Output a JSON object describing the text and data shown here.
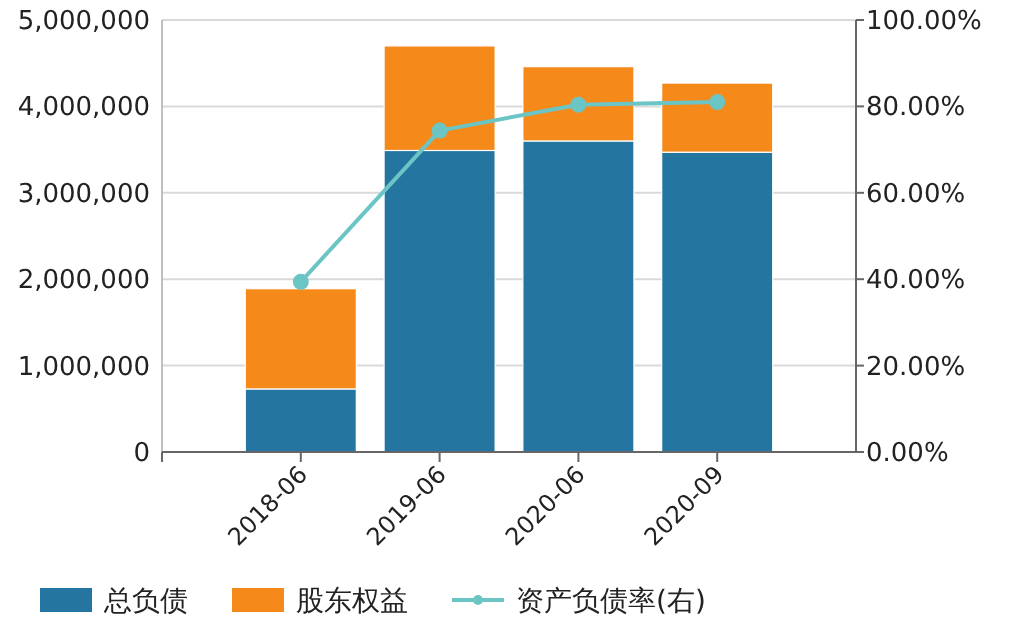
{
  "chart_data": {
    "type": "bar",
    "stacked": true,
    "categories": [
      "2018-06",
      "2019-06",
      "2020-06",
      "2020-09"
    ],
    "series": [
      {
        "name": "总负债",
        "color": "#2475a0",
        "values": [
          730000,
          3490000,
          3600000,
          3470000
        ]
      },
      {
        "name": "股东权益",
        "color": "#f5891a",
        "values": [
          1160000,
          1210000,
          860000,
          800000
        ]
      },
      {
        "name": "资产负债率(右)",
        "type": "line",
        "axis": "y2",
        "color": "#6cc5c5",
        "marker": "circle",
        "values": [
          39.4,
          74.4,
          80.4,
          81.0
        ]
      }
    ],
    "ylim": [
      0,
      5000000
    ],
    "yticks": [
      0,
      {
        "value": 1000000,
        "label": "1,000,000"
      },
      {
        "value": 2000000,
        "label": "2,000,000"
      },
      {
        "value": 3000000,
        "label": "3,000,000"
      },
      {
        "value": 4000000,
        "label": "4,000,000"
      },
      {
        "value": 5000000,
        "label": "5,000,000"
      }
    ],
    "y2lim": [
      0,
      100
    ],
    "y2ticks": [
      {
        "value": 0,
        "label": "0.00%"
      },
      {
        "value": 20,
        "label": "20.00%"
      },
      {
        "value": 40,
        "label": "40.00%"
      },
      {
        "value": 60,
        "label": "60.00%"
      },
      {
        "value": 80,
        "label": "80.00%"
      },
      {
        "value": 100,
        "label": "100.00%"
      }
    ],
    "grid": "y",
    "legend": "bottom"
  }
}
